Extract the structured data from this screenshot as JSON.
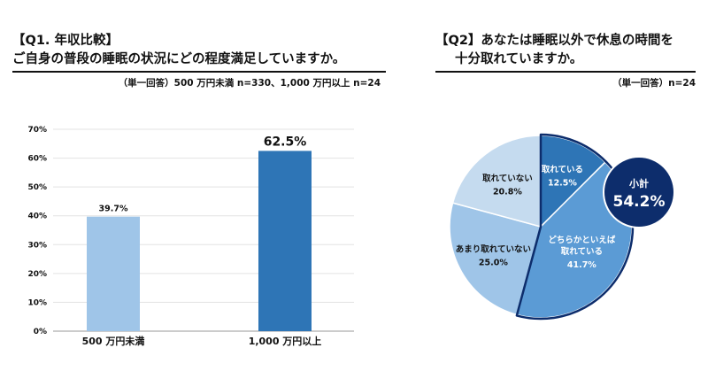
{
  "q1": {
    "title": "【Q1. 年収比較】",
    "question": "ご自身の普段の睡眠の状況にどの程度満足していますか。",
    "note": "（単一回答）500 万円未満 n=330、1,000 万円以上 n=24"
  },
  "q2": {
    "title_line1": "【Q2】あなたは睡眠以外で休息の時間を",
    "title_line2": "十分取れていますか。",
    "note": "（単一回答）n=24",
    "badge": {
      "label": "小計",
      "value": "54.2%"
    }
  },
  "chart_data": [
    {
      "type": "bar",
      "categories": [
        "500 万円未満",
        "1,000 万円以上"
      ],
      "values": [
        39.7,
        62.5
      ],
      "value_labels": [
        "39.7%",
        "62.5%"
      ],
      "yticks": [
        "0%",
        "10%",
        "20%",
        "30%",
        "40%",
        "50%",
        "60%",
        "70%"
      ],
      "ylim": [
        0,
        70
      ],
      "grid": true,
      "colors": [
        "#9fc5e8",
        "#2e75b6"
      ]
    },
    {
      "type": "pie",
      "slices": [
        {
          "label": "取れている",
          "value": 12.5,
          "pct": "12.5%",
          "color": "#2e75b6",
          "text_color": "#ffffff"
        },
        {
          "label": "どちらかといえば\n取れている",
          "value": 41.7,
          "pct": "41.7%",
          "color": "#5b9bd5",
          "text_color": "#ffffff"
        },
        {
          "label": "あまり取れていない",
          "value": 25.0,
          "pct": "25.0%",
          "color": "#9fc5e8",
          "text_color": "#111111"
        },
        {
          "label": "取れていない",
          "value": 20.8,
          "pct": "20.8%",
          "color": "#c5dbef",
          "text_color": "#111111"
        }
      ],
      "highlight_color": "#0d2d6c",
      "start": "12 o'clock, clockwise"
    }
  ]
}
